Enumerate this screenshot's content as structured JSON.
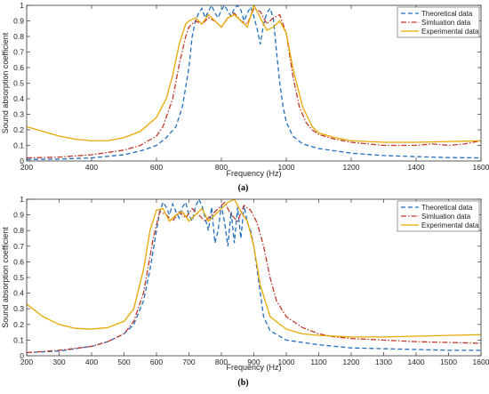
{
  "chart_data": [
    {
      "type": "line",
      "panel_label": "(a)",
      "xlabel": "Frequency (Hz)",
      "ylabel": "Sound absorption coefficient",
      "xlim": [
        200,
        1600
      ],
      "ylim": [
        0,
        1
      ],
      "xticks": [
        200,
        400,
        600,
        800,
        1000,
        1200,
        1400,
        1600
      ],
      "yticks": [
        0,
        0.1,
        0.2,
        0.3,
        0.4,
        0.5,
        0.6,
        0.7,
        0.8,
        0.9,
        1
      ],
      "legend_position": "top-right",
      "grid": false,
      "series": [
        {
          "name": "Theoretical data",
          "color": "#1f6fbf",
          "style": "dashed",
          "x": [
            200,
            300,
            400,
            500,
            560,
            600,
            630,
            660,
            680,
            700,
            710,
            720,
            730,
            740,
            750,
            760,
            770,
            780,
            790,
            800,
            810,
            820,
            830,
            840,
            850,
            860,
            870,
            880,
            890,
            900,
            910,
            920,
            930,
            940,
            950,
            960,
            970,
            980,
            990,
            1000,
            1020,
            1050,
            1100,
            1200,
            1300,
            1400,
            1500,
            1600
          ],
          "y": [
            0.01,
            0.012,
            0.02,
            0.04,
            0.07,
            0.1,
            0.15,
            0.22,
            0.35,
            0.6,
            0.8,
            0.9,
            0.95,
            0.98,
            0.92,
            0.96,
            1.0,
            0.95,
            0.92,
            0.97,
            1.0,
            0.96,
            0.93,
            0.98,
            1.0,
            0.97,
            0.9,
            0.95,
            0.99,
            0.93,
            0.85,
            0.75,
            0.88,
            0.95,
            0.98,
            0.92,
            0.7,
            0.5,
            0.35,
            0.25,
            0.16,
            0.11,
            0.08,
            0.05,
            0.035,
            0.028,
            0.022,
            0.02
          ]
        },
        {
          "name": "Simluation data",
          "color": "#c0392b",
          "style": "dashdot",
          "x": [
            200,
            300,
            400,
            500,
            550,
            600,
            620,
            650,
            670,
            690,
            700,
            720,
            740,
            760,
            780,
            800,
            820,
            840,
            860,
            880,
            900,
            920,
            940,
            960,
            980,
            1000,
            1020,
            1040,
            1060,
            1080,
            1100,
            1150,
            1200,
            1250,
            1300,
            1350,
            1400,
            1450,
            1500,
            1550,
            1600
          ],
          "y": [
            0.02,
            0.025,
            0.04,
            0.07,
            0.1,
            0.16,
            0.22,
            0.4,
            0.62,
            0.8,
            0.86,
            0.9,
            0.88,
            0.92,
            0.9,
            0.86,
            0.92,
            0.95,
            0.9,
            0.88,
            0.98,
            0.96,
            0.88,
            0.92,
            0.94,
            0.82,
            0.55,
            0.35,
            0.25,
            0.2,
            0.17,
            0.14,
            0.12,
            0.11,
            0.1,
            0.1,
            0.1,
            0.11,
            0.1,
            0.11,
            0.13
          ]
        },
        {
          "name": "Experimental data",
          "color": "#e8a800",
          "style": "solid",
          "x": [
            200,
            250,
            300,
            350,
            400,
            450,
            500,
            550,
            600,
            630,
            650,
            670,
            690,
            700,
            720,
            740,
            760,
            780,
            800,
            820,
            840,
            860,
            880,
            900,
            920,
            940,
            960,
            980,
            1000,
            1020,
            1050,
            1080,
            1100,
            1150,
            1200,
            1300,
            1400,
            1500,
            1600
          ],
          "y": [
            0.22,
            0.19,
            0.16,
            0.14,
            0.13,
            0.13,
            0.15,
            0.19,
            0.28,
            0.4,
            0.55,
            0.75,
            0.88,
            0.9,
            0.92,
            0.88,
            0.94,
            0.9,
            0.86,
            0.92,
            0.94,
            0.9,
            0.86,
            1.0,
            0.92,
            0.84,
            0.86,
            0.9,
            0.82,
            0.6,
            0.35,
            0.22,
            0.18,
            0.15,
            0.13,
            0.12,
            0.12,
            0.125,
            0.13
          ]
        }
      ]
    },
    {
      "type": "line",
      "panel_label": "(b)",
      "xlabel": "Frequency (Hz)",
      "ylabel": "Sound absorption coefficient",
      "xlim": [
        200,
        1600
      ],
      "ylim": [
        0,
        1
      ],
      "xticks": [
        200,
        300,
        400,
        500,
        600,
        700,
        800,
        900,
        1000,
        1100,
        1200,
        1300,
        1400,
        1500,
        1600
      ],
      "yticks": [
        0,
        0.1,
        0.2,
        0.3,
        0.4,
        0.5,
        0.6,
        0.7,
        0.8,
        0.9,
        1
      ],
      "legend_position": "top-right",
      "grid": false,
      "series": [
        {
          "name": "Theoretical data",
          "color": "#1f6fbf",
          "style": "dashed",
          "x": [
            200,
            300,
            400,
            450,
            500,
            530,
            560,
            580,
            600,
            610,
            620,
            630,
            640,
            650,
            660,
            670,
            680,
            690,
            700,
            710,
            720,
            730,
            740,
            750,
            760,
            770,
            780,
            790,
            800,
            810,
            820,
            830,
            840,
            850,
            860,
            870,
            880,
            890,
            900,
            910,
            920,
            930,
            950,
            1000,
            1100,
            1200,
            1300,
            1400,
            1500,
            1600
          ],
          "y": [
            0.02,
            0.03,
            0.06,
            0.09,
            0.14,
            0.2,
            0.35,
            0.55,
            0.8,
            0.92,
            0.98,
            0.95,
            0.9,
            0.97,
            0.92,
            0.88,
            0.95,
            0.98,
            0.9,
            0.86,
            0.95,
            1.0,
            0.96,
            0.88,
            0.8,
            0.95,
            0.72,
            0.8,
            0.96,
            0.85,
            0.7,
            0.92,
            0.72,
            0.95,
            0.75,
            0.96,
            0.85,
            0.8,
            0.7,
            0.55,
            0.4,
            0.25,
            0.16,
            0.1,
            0.07,
            0.05,
            0.045,
            0.04,
            0.035,
            0.035
          ]
        },
        {
          "name": "Simluation data",
          "color": "#c0392b",
          "style": "dashdot",
          "x": [
            200,
            300,
            400,
            450,
            500,
            530,
            560,
            590,
            610,
            630,
            650,
            670,
            690,
            710,
            730,
            750,
            770,
            790,
            810,
            830,
            850,
            870,
            890,
            910,
            930,
            950,
            970,
            1000,
            1050,
            1100,
            1150,
            1200,
            1300,
            1400,
            1500,
            1600
          ],
          "y": [
            0.02,
            0.035,
            0.06,
            0.09,
            0.14,
            0.22,
            0.4,
            0.75,
            0.92,
            0.9,
            0.86,
            0.92,
            0.88,
            0.94,
            0.9,
            0.86,
            0.9,
            0.94,
            0.98,
            0.9,
            0.86,
            0.96,
            0.93,
            0.85,
            0.7,
            0.5,
            0.35,
            0.25,
            0.18,
            0.14,
            0.12,
            0.11,
            0.1,
            0.09,
            0.085,
            0.08
          ]
        },
        {
          "name": "Experimental data",
          "color": "#e8a800",
          "style": "solid",
          "x": [
            200,
            250,
            300,
            350,
            400,
            450,
            500,
            530,
            560,
            580,
            600,
            620,
            640,
            660,
            680,
            700,
            720,
            740,
            760,
            780,
            800,
            820,
            840,
            860,
            880,
            900,
            920,
            950,
            1000,
            1050,
            1100,
            1200,
            1300,
            1400,
            1500,
            1600
          ],
          "y": [
            0.33,
            0.25,
            0.2,
            0.175,
            0.17,
            0.18,
            0.22,
            0.3,
            0.55,
            0.8,
            0.93,
            0.94,
            0.86,
            0.9,
            0.92,
            0.86,
            0.9,
            0.94,
            0.86,
            0.9,
            0.94,
            0.98,
            1.0,
            0.92,
            0.86,
            0.7,
            0.45,
            0.25,
            0.17,
            0.14,
            0.13,
            0.12,
            0.12,
            0.125,
            0.13,
            0.135
          ]
        }
      ]
    }
  ]
}
